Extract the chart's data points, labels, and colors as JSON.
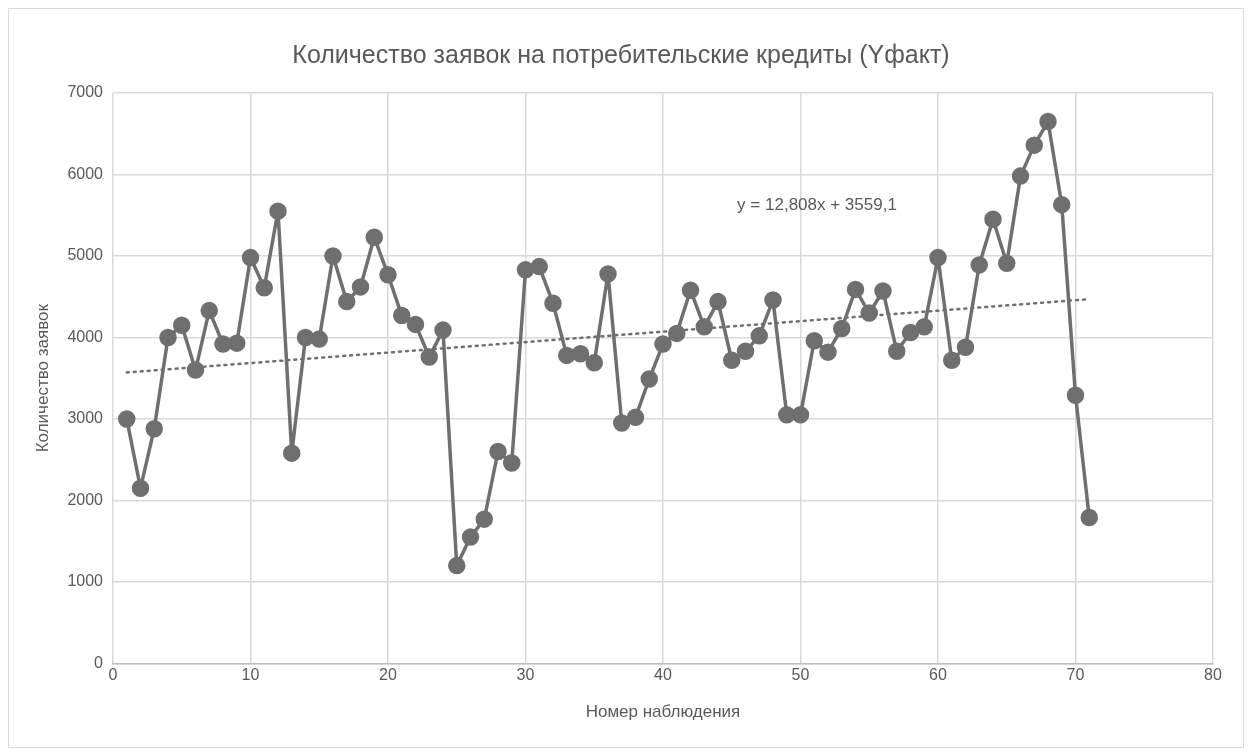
{
  "chart_data": {
    "type": "line",
    "title": "Количество заявок на потребительские кредиты (Yфакт)",
    "xlabel": "Номер наблюдения",
    "ylabel": "Количество заявок",
    "x": [
      1,
      2,
      3,
      4,
      5,
      6,
      7,
      8,
      9,
      10,
      11,
      12,
      13,
      14,
      15,
      16,
      17,
      18,
      19,
      20,
      21,
      22,
      23,
      24,
      25,
      26,
      27,
      28,
      29,
      30,
      31,
      32,
      33,
      34,
      35,
      36,
      37,
      38,
      39,
      40,
      41,
      42,
      43,
      44,
      45,
      46,
      47,
      48,
      49,
      50,
      51,
      52,
      53,
      54,
      55,
      56,
      57,
      58,
      59,
      60,
      61,
      62,
      63,
      64,
      65,
      66,
      67,
      68,
      69,
      70,
      71
    ],
    "series": [
      {
        "color": "#6f6f6f",
        "marker": "circle",
        "line_style": "solid",
        "values": [
          3000,
          2150,
          2880,
          4000,
          4150,
          3600,
          4330,
          3920,
          3930,
          4980,
          4610,
          5550,
          2580,
          4000,
          3980,
          5000,
          4440,
          4620,
          5230,
          4770,
          4270,
          4160,
          3760,
          4090,
          1200,
          1550,
          1770,
          2600,
          2460,
          4830,
          4870,
          4420,
          3780,
          3800,
          3690,
          4780,
          2950,
          3020,
          3490,
          3920,
          4050,
          4580,
          4130,
          4440,
          3720,
          3830,
          4020,
          4460,
          3050,
          3050,
          3960,
          3820,
          4110,
          4590,
          4300,
          4570,
          3830,
          4060,
          4130,
          4980,
          3720,
          3880,
          4890,
          5450,
          4910,
          5980,
          6360,
          6650,
          5630,
          3290,
          1790
        ]
      },
      {
        "color": "#6f6f6f",
        "marker": "none",
        "line_style": "dotted",
        "x": [
          1,
          71
        ],
        "values": [
          3570,
          4470
        ]
      }
    ],
    "annotations": [
      "y = 12,808x + 3559,1"
    ],
    "xlim": [
      0,
      80
    ],
    "xticks": [
      0,
      10,
      20,
      30,
      40,
      50,
      60,
      70,
      80
    ],
    "ylim": [
      0,
      7000
    ],
    "yticks": [
      0,
      1000,
      2000,
      3000,
      4000,
      5000,
      6000,
      7000
    ],
    "grid": true,
    "legend": false
  }
}
